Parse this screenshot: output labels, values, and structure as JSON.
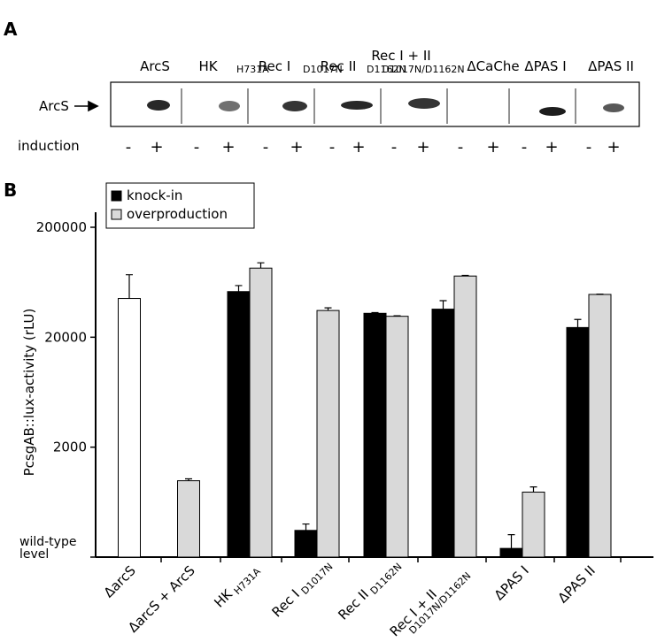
{
  "blot": {
    "panel": "A",
    "row_label": "ArcS",
    "induction_label": "induction",
    "induction": [
      "-",
      "+"
    ],
    "lanes": [
      {
        "label": "ArcS",
        "sub": null
      },
      {
        "label": "HK",
        "sub": "H731A"
      },
      {
        "label": "Rec I",
        "sub": "D1017N"
      },
      {
        "label": "Rec II",
        "sub": "D1162N"
      },
      {
        "label": "Rec I + II",
        "sub": "D1017N/D1162N"
      },
      {
        "label": "ΔCaChe",
        "sub": null
      },
      {
        "label": "ΔPAS I",
        "sub": null
      },
      {
        "label": "ΔPAS II",
        "sub": null
      }
    ]
  },
  "chart_data": {
    "type": "bar",
    "panel": "B",
    "y_label": "PcsgAB::lux-activity (rLU)",
    "log_scale": true,
    "categories": [
      "ΔarcS",
      "ΔarcS + ArcS",
      "HK",
      "Rec I",
      "Rec II",
      "Rec I + II",
      "ΔPAS I",
      "ΔPAS II"
    ],
    "category_subscripts": [
      null,
      null,
      "H731A",
      "D1017N",
      "D1162N",
      "D1017N/D1162N",
      null,
      null
    ],
    "series": [
      {
        "color": "#ffffff",
        "values": [
          45000,
          null,
          null,
          null,
          null,
          null,
          null,
          null
        ],
        "errors": [
          29000,
          null,
          null,
          null,
          null,
          null,
          null,
          null
        ]
      },
      {
        "name": "knock-in",
        "color": "#000000",
        "values": [
          null,
          null,
          52000,
          350,
          33000,
          36000,
          240,
          24500
        ],
        "errors": [
          null,
          null,
          7000,
          50,
          500,
          7000,
          80,
          4500
        ]
      },
      {
        "name": "overproduction",
        "color": "#d9d9d9",
        "values": [
          null,
          990,
          85000,
          35000,
          31000,
          72000,
          780,
          49000
        ],
        "errors": [
          null,
          40,
          10000,
          2000,
          300,
          1000,
          90,
          300
        ]
      }
    ],
    "ylim": [
      200,
      200000
    ],
    "yticks": [
      {
        "value": 200,
        "label": "wild-type level"
      },
      2000,
      20000,
      200000
    ],
    "legend": "top-left"
  }
}
